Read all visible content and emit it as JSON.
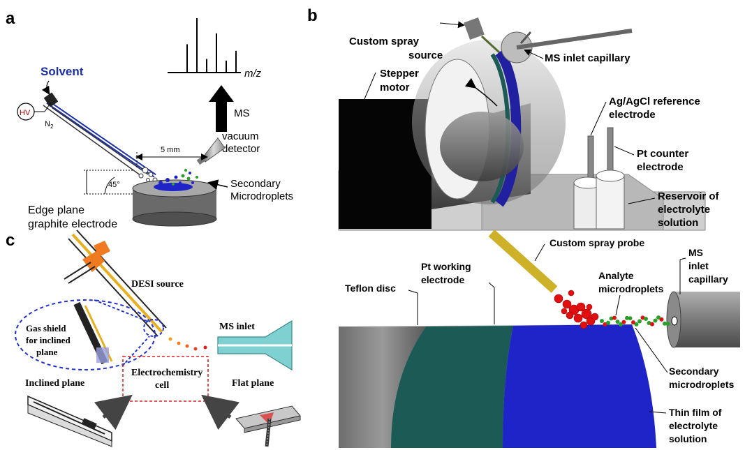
{
  "panels": {
    "a": {
      "letter": "a",
      "solvent": "Solvent",
      "hv": "HV",
      "n2": "N",
      "n2_sub": "2",
      "mz": "m/z",
      "ms": "MS",
      "vacuum": "vacuum",
      "detector": "detector",
      "distance": "5 mm",
      "angle": "45°",
      "secondary_1": "Secondary",
      "secondary_2": "Microdroplets",
      "electrode_1": "Edge plane",
      "electrode_2": "graphite electrode",
      "spectrum_peaks": [
        0.52,
        1.0,
        0.25,
        0.72,
        0.22,
        0.4
      ]
    },
    "b": {
      "letter": "b",
      "spray_source_1": "Custom spray",
      "spray_source_2": "source",
      "ms_inlet": "MS inlet capillary",
      "stepper_1": "Stepper",
      "stepper_2": "motor",
      "ref_1": "Ag/AgCl reference",
      "ref_2": "electrode",
      "counter_1": "Pt counter",
      "counter_2": "electrode",
      "reservoir_1": "Reservoir of",
      "reservoir_2": "electrolyte",
      "reservoir_3": "solution",
      "spray_probe": "Custom spray probe",
      "ms_inlet2_1": "MS",
      "ms_inlet2_2": "inlet",
      "ms_inlet2_3": "capillary",
      "pt_working_1": "Pt working",
      "pt_working_2": "electrode",
      "analyte_1": "Analyte",
      "analyte_2": "microdroplets",
      "teflon": "Teflon disc",
      "secondary_1": "Secondary",
      "secondary_2": "microdroplets",
      "thin_film_1": "Thin film of",
      "thin_film_2": "electrolyte",
      "thin_film_3": "solution"
    },
    "c": {
      "letter": "c",
      "desi": "DESI source",
      "gas_shield_1": "Gas shield",
      "gas_shield_2": "for inclined",
      "gas_shield_3": "plane",
      "ms_inlet": "MS inlet",
      "cell_1": "Electrochemistry",
      "cell_2": "cell",
      "inclined": "Inclined plane",
      "flat": "Flat plane"
    }
  },
  "colors": {
    "solvent_blue": "#1a2fa8",
    "disc_blue": "#1f24c8",
    "teal": "#1c5a55",
    "droplet_red": "#e01010",
    "droplet_green": "#2aa02a",
    "yellow": "#e8c830",
    "orange": "#f07a20",
    "cell_border": "#e02020",
    "lens_border": "#2030d0",
    "inlet_cyan": "#7fd0d0"
  }
}
